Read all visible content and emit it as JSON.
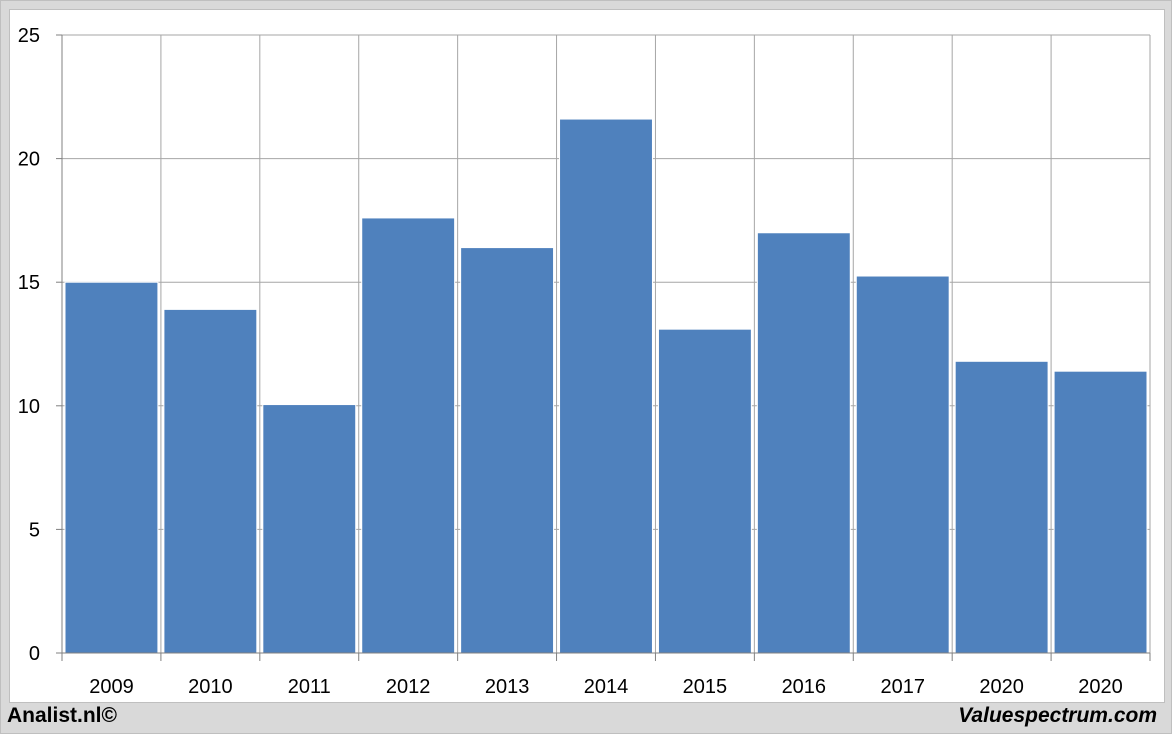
{
  "chart_data": {
    "type": "bar",
    "categories": [
      "2009",
      "2010",
      "2011",
      "2012",
      "2013",
      "2014",
      "2015",
      "2016",
      "2017",
      "2020",
      "2020"
    ],
    "values": [
      15.0,
      13.9,
      10.05,
      17.6,
      16.4,
      21.6,
      13.1,
      17.0,
      15.25,
      11.8,
      11.4
    ],
    "title": "",
    "xlabel": "",
    "ylabel": "",
    "ylim": [
      0,
      25
    ],
    "yticks": [
      0,
      5,
      10,
      15,
      20,
      25
    ],
    "grid": true,
    "bar_color": "#4f81bd",
    "grid_color": "#a6a6a6"
  },
  "footer": {
    "left_text": "Analist.nl©",
    "right_text": "Valuespectrum.com"
  }
}
